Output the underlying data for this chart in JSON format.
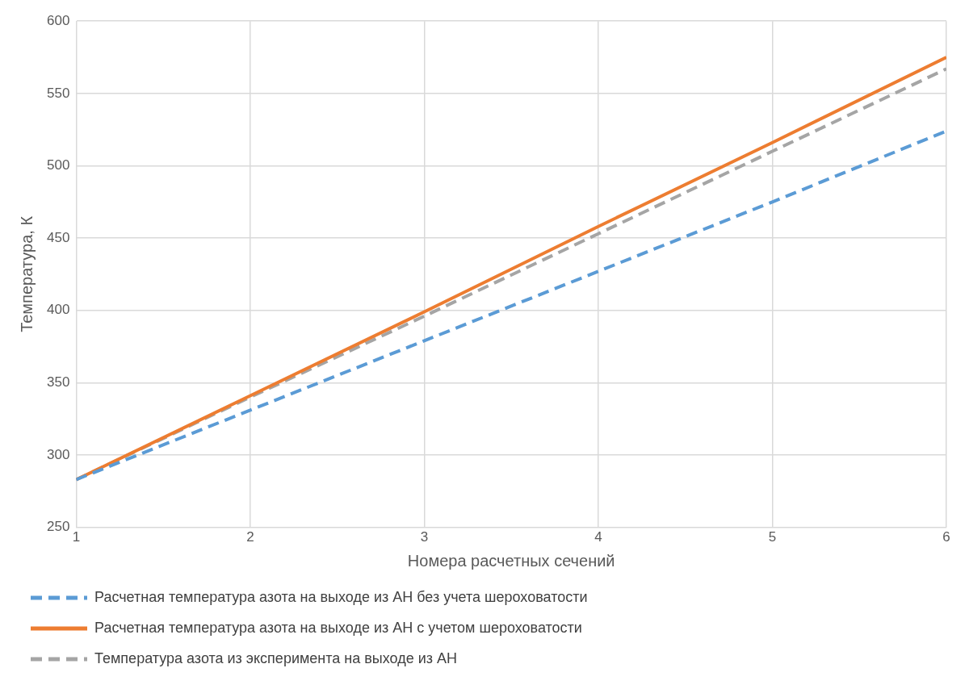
{
  "chart_data": {
    "type": "line",
    "xlabel": "Номера расчетных сечений",
    "ylabel": "Температура, К",
    "x": [
      1,
      2,
      3,
      4,
      5,
      6
    ],
    "series": [
      {
        "name": "Расчетная температура азота на выходе из АН без учета шероховатости",
        "color": "#5b9bd5",
        "line_style": "dashed",
        "values": [
          283,
          331,
          379,
          427,
          475,
          524
        ]
      },
      {
        "name": "Расчетная температура азота на выходе из АН с учетом шероховатости",
        "color": "#ed7d31",
        "line_style": "solid",
        "values": [
          283,
          341,
          399,
          458,
          516,
          575
        ]
      },
      {
        "name": "Температура азота из эксперимента на выходе из АН",
        "color": "#a5a5a5",
        "line_style": "dashed",
        "values": [
          283,
          340,
          396,
          453,
          510,
          567
        ]
      }
    ],
    "xlim": [
      1,
      6
    ],
    "xticks": [
      1,
      2,
      3,
      4,
      5,
      6
    ],
    "ylim": [
      250,
      600
    ],
    "yticks": [
      250,
      300,
      350,
      400,
      450,
      500,
      550,
      600
    ],
    "grid": true,
    "legend": "bottom",
    "marker": "none"
  }
}
